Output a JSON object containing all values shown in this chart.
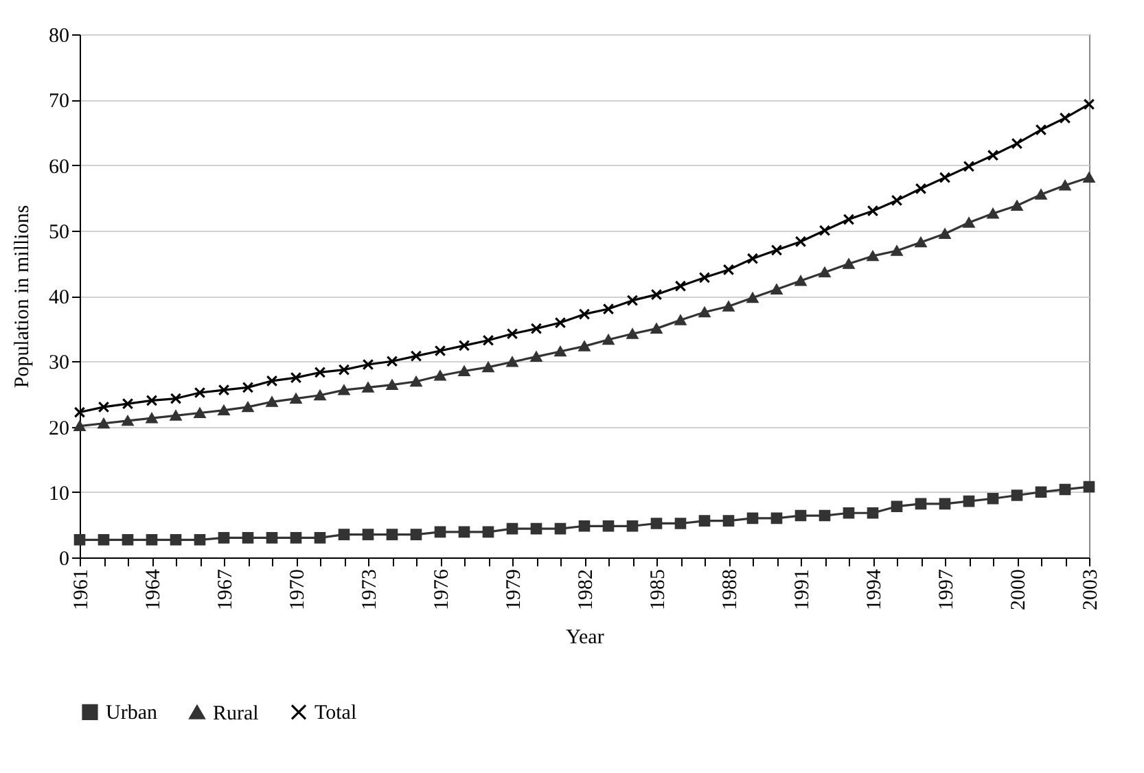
{
  "chart_data": {
    "type": "line",
    "xlabel": "Year",
    "ylabel": "Population in millions",
    "x": [
      1961,
      1962,
      1963,
      1964,
      1965,
      1966,
      1967,
      1968,
      1969,
      1970,
      1971,
      1972,
      1973,
      1974,
      1975,
      1976,
      1977,
      1978,
      1979,
      1980,
      1981,
      1982,
      1983,
      1984,
      1985,
      1986,
      1987,
      1988,
      1989,
      1990,
      1991,
      1992,
      1993,
      1994,
      1995,
      1996,
      1997,
      1998,
      1999,
      2000,
      2001,
      2002,
      2003
    ],
    "series": [
      {
        "name": "Urban",
        "color": "#333333",
        "marker": "square",
        "values": [
          2.7,
          2.7,
          2.7,
          2.7,
          2.7,
          2.7,
          3.0,
          3.0,
          3.0,
          3.0,
          3.0,
          3.5,
          3.5,
          3.5,
          3.5,
          3.9,
          3.9,
          3.9,
          4.4,
          4.4,
          4.4,
          4.8,
          4.8,
          4.8,
          5.2,
          5.2,
          5.6,
          5.6,
          6.0,
          6.0,
          6.4,
          6.4,
          6.8,
          6.8,
          7.8,
          8.2,
          8.2,
          8.6,
          9.0,
          9.5,
          10.0,
          10.4,
          10.8
        ]
      },
      {
        "name": "Rural",
        "color": "#333333",
        "marker": "triangle",
        "values": [
          20.1,
          20.5,
          20.9,
          21.3,
          21.7,
          22.1,
          22.5,
          23.0,
          23.8,
          24.3,
          24.8,
          25.6,
          26.0,
          26.4,
          26.9,
          27.8,
          28.5,
          29.1,
          29.9,
          30.7,
          31.5,
          32.3,
          33.3,
          34.2,
          35.0,
          36.3,
          37.5,
          38.4,
          39.7,
          41.0,
          42.3,
          43.6,
          44.9,
          46.1,
          46.9,
          48.2,
          49.5,
          51.2,
          52.6,
          53.8,
          55.5,
          56.9,
          58.1
        ]
      },
      {
        "name": "Total",
        "color": "#000000",
        "marker": "cross",
        "values": [
          22.2,
          23.0,
          23.5,
          24.0,
          24.3,
          25.2,
          25.6,
          26.0,
          27.0,
          27.5,
          28.3,
          28.7,
          29.5,
          30.0,
          30.8,
          31.6,
          32.4,
          33.2,
          34.2,
          35.0,
          35.9,
          37.2,
          38.0,
          39.3,
          40.2,
          41.5,
          42.8,
          44.0,
          45.7,
          47.0,
          48.3,
          50.0,
          51.7,
          53.0,
          54.6,
          56.4,
          58.1,
          59.8,
          61.5,
          63.3,
          65.4,
          67.2,
          69.3
        ]
      }
    ],
    "xlim": [
      1961,
      2003
    ],
    "xticks": [
      1961,
      {
        "value": 1962,
        "label": null
      },
      {
        "value": 1963,
        "label": null
      },
      1964,
      {
        "value": 1965,
        "label": null
      },
      {
        "value": 1966,
        "label": null
      },
      1967,
      {
        "value": 1968,
        "label": null
      },
      {
        "value": 1969,
        "label": null
      },
      1970,
      {
        "value": 1971,
        "label": null
      },
      {
        "value": 1972,
        "label": null
      },
      1973,
      {
        "value": 1974,
        "label": null
      },
      {
        "value": 1975,
        "label": null
      },
      1976,
      {
        "value": 1977,
        "label": null
      },
      {
        "value": 1978,
        "label": null
      },
      1979,
      {
        "value": 1980,
        "label": null
      },
      {
        "value": 1981,
        "label": null
      },
      1982,
      {
        "value": 1983,
        "label": null
      },
      {
        "value": 1984,
        "label": null
      },
      1985,
      {
        "value": 1986,
        "label": null
      },
      {
        "value": 1987,
        "label": null
      },
      1988,
      {
        "value": 1989,
        "label": null
      },
      {
        "value": 1990,
        "label": null
      },
      1991,
      {
        "value": 1992,
        "label": null
      },
      {
        "value": 1993,
        "label": null
      },
      1994,
      {
        "value": 1995,
        "label": null
      },
      {
        "value": 1996,
        "label": null
      },
      1997,
      {
        "value": 1998,
        "label": null
      },
      {
        "value": 1999,
        "label": null
      },
      2000,
      {
        "value": 2001,
        "label": null
      },
      {
        "value": 2002,
        "label": null
      },
      2003
    ],
    "ylim": [
      0,
      80
    ],
    "yticks": [
      0,
      10,
      20,
      30,
      40,
      50,
      60,
      70,
      80
    ],
    "grid": "y",
    "legend": "bottom",
    "line_style": "solid"
  }
}
